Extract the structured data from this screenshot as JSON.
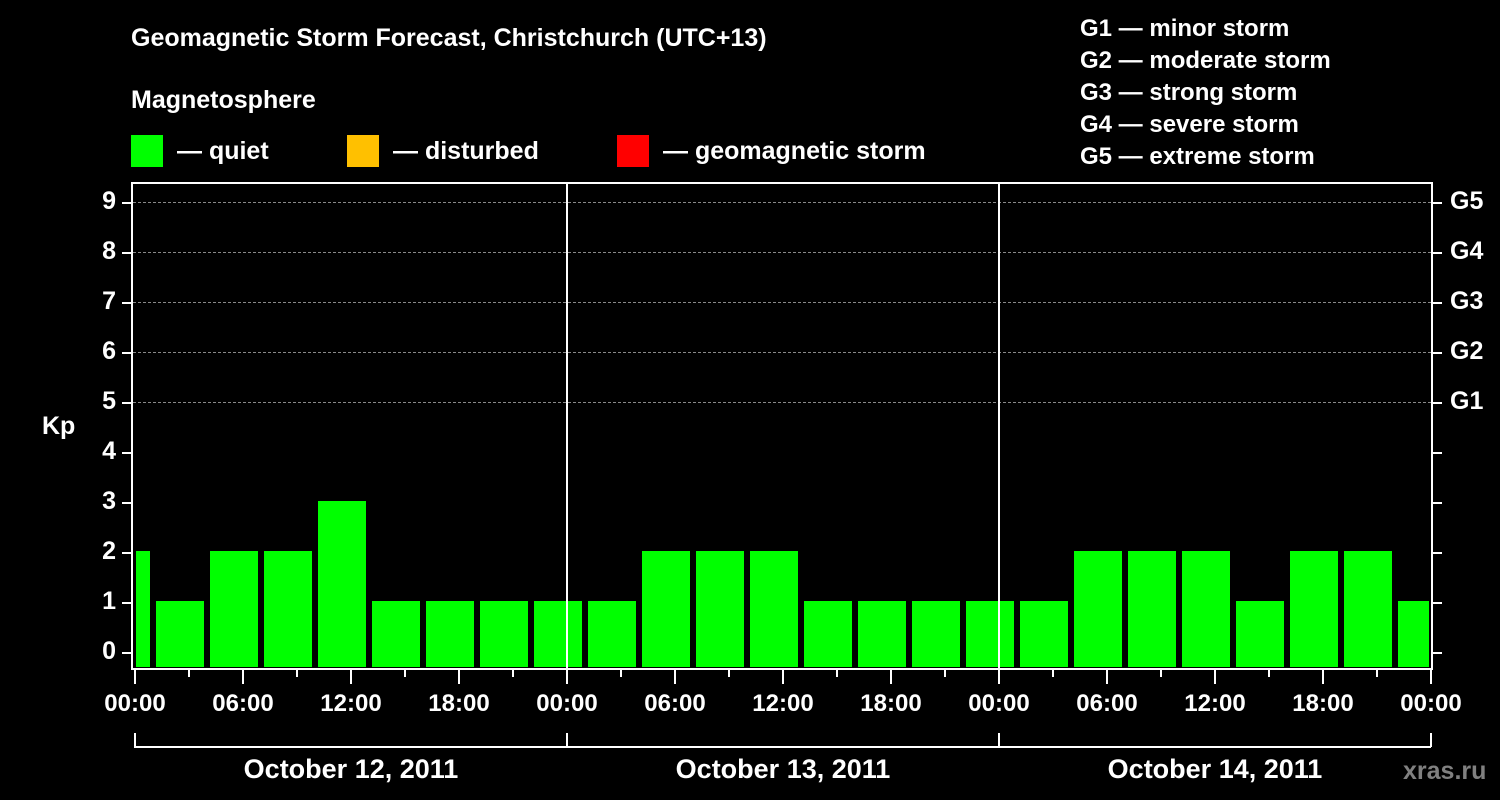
{
  "header": {
    "title": "Geomagnetic Storm Forecast, Christchurch (UTC+13)",
    "subtitle": "Magnetosphere"
  },
  "legend": [
    {
      "label": "— quiet",
      "color": "#00ff00"
    },
    {
      "label": "— disturbed",
      "color": "#ffc000"
    },
    {
      "label": "— geomagnetic storm",
      "color": "#ff0000"
    }
  ],
  "g_scale": [
    "G1 — minor storm",
    "G2 — moderate storm",
    "G3 — strong storm",
    "G4 — severe storm",
    "G5 — extreme storm"
  ],
  "axis": {
    "ylabel": "Kp",
    "yticks": [
      "0",
      "1",
      "2",
      "3",
      "4",
      "5",
      "6",
      "7",
      "8",
      "9"
    ],
    "right_ticks": [
      {
        "kp": 5,
        "label": "G1"
      },
      {
        "kp": 6,
        "label": "G2"
      },
      {
        "kp": 7,
        "label": "G3"
      },
      {
        "kp": 8,
        "label": "G4"
      },
      {
        "kp": 9,
        "label": "G5"
      }
    ],
    "xticks": [
      "00:00",
      "06:00",
      "12:00",
      "18:00",
      "00:00",
      "06:00",
      "12:00",
      "18:00",
      "00:00",
      "06:00",
      "12:00",
      "18:00",
      "00:00"
    ],
    "dates": [
      "October 12, 2011",
      "October 13, 2011",
      "October 14, 2011"
    ]
  },
  "watermark": "xras.ru",
  "chart_data": {
    "type": "bar",
    "title": "Geomagnetic Storm Forecast, Christchurch (UTC+13)",
    "xlabel": "",
    "ylabel": "Kp",
    "ylim": [
      0,
      9
    ],
    "right_axis_labels": {
      "5": "G1",
      "6": "G2",
      "7": "G3",
      "8": "G4",
      "9": "G5"
    },
    "grid": "dashed horizontal at Kp 5-9",
    "legend": [
      "quiet",
      "disturbed",
      "geomagnetic storm"
    ],
    "days": [
      "October 12, 2011",
      "October 13, 2011",
      "October 14, 2011"
    ],
    "interval_hours": 3,
    "values": [
      2,
      1,
      2,
      2,
      3,
      1,
      1,
      1,
      1,
      1,
      2,
      2,
      2,
      1,
      1,
      1,
      1,
      1,
      2,
      2,
      2,
      1,
      2,
      2,
      1
    ],
    "colors": "all quiet (#00ff00)"
  }
}
